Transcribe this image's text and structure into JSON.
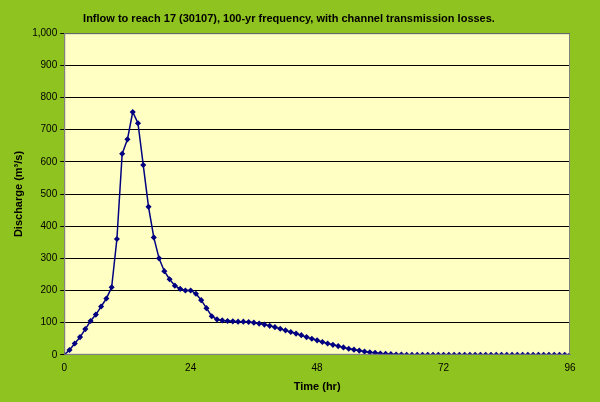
{
  "chart_data": {
    "type": "line",
    "title": "Inflow to reach 17 (30107), 100-yr frequency, with channel transmission losses.",
    "x_label": "Time (hr)",
    "y_label": "Discharge (m³/s)",
    "x": [
      0,
      1,
      2,
      3,
      4,
      5,
      6,
      7,
      8,
      9,
      10,
      11,
      12,
      13,
      14,
      15,
      16,
      17,
      18,
      19,
      20,
      21,
      22,
      23,
      24,
      25,
      26,
      27,
      28,
      29,
      30,
      31,
      32,
      33,
      34,
      35,
      36,
      37,
      38,
      39,
      40,
      41,
      42,
      43,
      44,
      45,
      46,
      47,
      48,
      49,
      50,
      51,
      52,
      53,
      54,
      55,
      56,
      57,
      58,
      59,
      60,
      61,
      62,
      63,
      64,
      65,
      66,
      67,
      68,
      69,
      70,
      71,
      72,
      73,
      74,
      75,
      76,
      77,
      78,
      79,
      80,
      81,
      82,
      83,
      84,
      85,
      86,
      87,
      88,
      89,
      90,
      91,
      92,
      93,
      94,
      95,
      96
    ],
    "values": [
      0,
      15,
      35,
      55,
      80,
      105,
      125,
      150,
      175,
      210,
      360,
      625,
      670,
      755,
      720,
      590,
      460,
      365,
      300,
      260,
      235,
      215,
      205,
      200,
      200,
      190,
      170,
      145,
      120,
      110,
      107,
      105,
      104,
      103,
      103,
      102,
      100,
      97,
      94,
      90,
      86,
      81,
      76,
      71,
      66,
      61,
      55,
      50,
      45,
      40,
      35,
      31,
      27,
      23,
      19,
      16,
      13,
      10,
      8,
      6,
      4,
      3,
      2,
      1,
      1,
      0,
      0,
      0,
      0,
      0,
      0,
      0,
      0,
      0,
      0,
      0,
      0,
      0,
      0,
      0,
      0,
      0,
      0,
      0,
      0,
      0,
      0,
      0,
      0,
      0,
      0,
      0,
      0,
      0,
      0,
      0,
      0
    ],
    "color": "#000080",
    "marker": "diamond",
    "xlim": [
      0,
      96
    ],
    "xticks": [
      0,
      24,
      48,
      72,
      96
    ],
    "ylim": [
      0,
      1000
    ],
    "yticks": [
      0,
      100,
      200,
      300,
      400,
      500,
      600,
      700,
      800,
      900,
      1000
    ],
    "grid": true
  }
}
